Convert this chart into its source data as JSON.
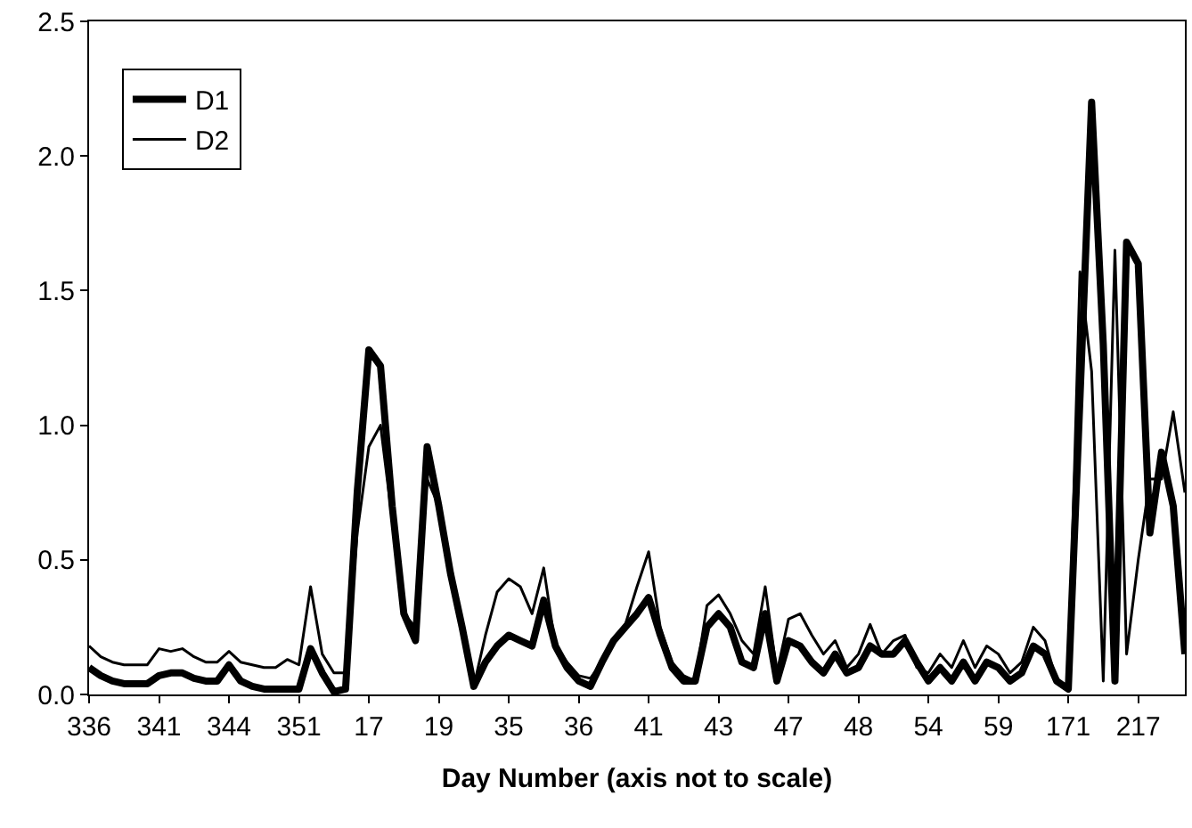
{
  "chart_data": {
    "type": "line",
    "xlabel": "Day Number (axis not to scale)",
    "categories": [
      "336",
      null,
      null,
      null,
      null,
      null,
      "341",
      null,
      null,
      null,
      null,
      null,
      "344",
      null,
      null,
      null,
      null,
      null,
      "351",
      null,
      null,
      null,
      null,
      null,
      "17",
      null,
      null,
      null,
      null,
      null,
      "19",
      null,
      null,
      null,
      null,
      null,
      "35",
      null,
      null,
      null,
      null,
      null,
      "36",
      null,
      null,
      null,
      null,
      null,
      "41",
      null,
      null,
      null,
      null,
      null,
      "43",
      null,
      null,
      null,
      null,
      null,
      "47",
      null,
      null,
      null,
      null,
      null,
      "48",
      null,
      null,
      null,
      null,
      null,
      "54",
      null,
      null,
      null,
      null,
      null,
      "59",
      null,
      null,
      null,
      null,
      null,
      "171",
      null,
      null,
      null,
      null,
      null,
      "217",
      null,
      null,
      null,
      null
    ],
    "series": [
      {
        "name": "D1",
        "color": "#000000",
        "values": [
          0.1,
          0.07,
          0.05,
          0.04,
          0.04,
          0.04,
          0.07,
          0.08,
          0.08,
          0.06,
          0.05,
          0.05,
          0.11,
          0.05,
          0.03,
          0.02,
          0.02,
          0.02,
          0.02,
          0.17,
          0.08,
          0.01,
          0.02,
          0.75,
          1.28,
          1.22,
          0.7,
          0.3,
          0.2,
          0.92,
          0.7,
          0.45,
          0.25,
          0.03,
          0.12,
          0.18,
          0.22,
          0.2,
          0.18,
          0.35,
          0.18,
          0.1,
          0.05,
          0.03,
          0.12,
          0.2,
          0.25,
          0.3,
          0.36,
          0.22,
          0.1,
          0.05,
          0.05,
          0.25,
          0.3,
          0.25,
          0.12,
          0.1,
          0.3,
          0.05,
          0.2,
          0.18,
          0.12,
          0.08,
          0.15,
          0.08,
          0.1,
          0.18,
          0.15,
          0.15,
          0.2,
          0.12,
          0.05,
          0.1,
          0.05,
          0.12,
          0.05,
          0.12,
          0.1,
          0.05,
          0.08,
          0.18,
          0.15,
          0.05,
          0.02,
          1.1,
          2.2,
          1.3,
          0.05,
          1.68,
          1.6,
          0.6,
          0.9,
          0.7,
          0.15
        ]
      },
      {
        "name": "D2",
        "color": "#000000",
        "values": [
          0.18,
          0.14,
          0.12,
          0.11,
          0.11,
          0.11,
          0.17,
          0.16,
          0.17,
          0.14,
          0.12,
          0.12,
          0.16,
          0.12,
          0.11,
          0.1,
          0.1,
          0.13,
          0.11,
          0.4,
          0.15,
          0.08,
          0.08,
          0.6,
          0.92,
          1.0,
          0.65,
          0.3,
          0.25,
          0.8,
          0.7,
          0.48,
          0.25,
          0.03,
          0.22,
          0.38,
          0.43,
          0.4,
          0.3,
          0.47,
          0.18,
          0.12,
          0.07,
          0.06,
          0.12,
          0.2,
          0.26,
          0.4,
          0.53,
          0.25,
          0.12,
          0.07,
          0.05,
          0.33,
          0.37,
          0.3,
          0.2,
          0.15,
          0.4,
          0.08,
          0.28,
          0.3,
          0.22,
          0.15,
          0.2,
          0.1,
          0.15,
          0.26,
          0.15,
          0.2,
          0.22,
          0.1,
          0.08,
          0.15,
          0.1,
          0.2,
          0.1,
          0.18,
          0.15,
          0.08,
          0.12,
          0.25,
          0.2,
          0.05,
          0.02,
          1.57,
          1.2,
          0.05,
          1.65,
          0.15,
          0.5,
          0.8,
          0.8,
          1.05,
          0.75
        ]
      }
    ],
    "ylim": [
      0,
      2.5
    ],
    "yticks": [
      {
        "value": 0,
        "label": "0.0"
      },
      0.5,
      {
        "value": 1,
        "label": "1.0"
      },
      1.5,
      {
        "value": 2,
        "label": "2.0"
      },
      2.5
    ],
    "legend": "top left",
    "marker": "none"
  }
}
